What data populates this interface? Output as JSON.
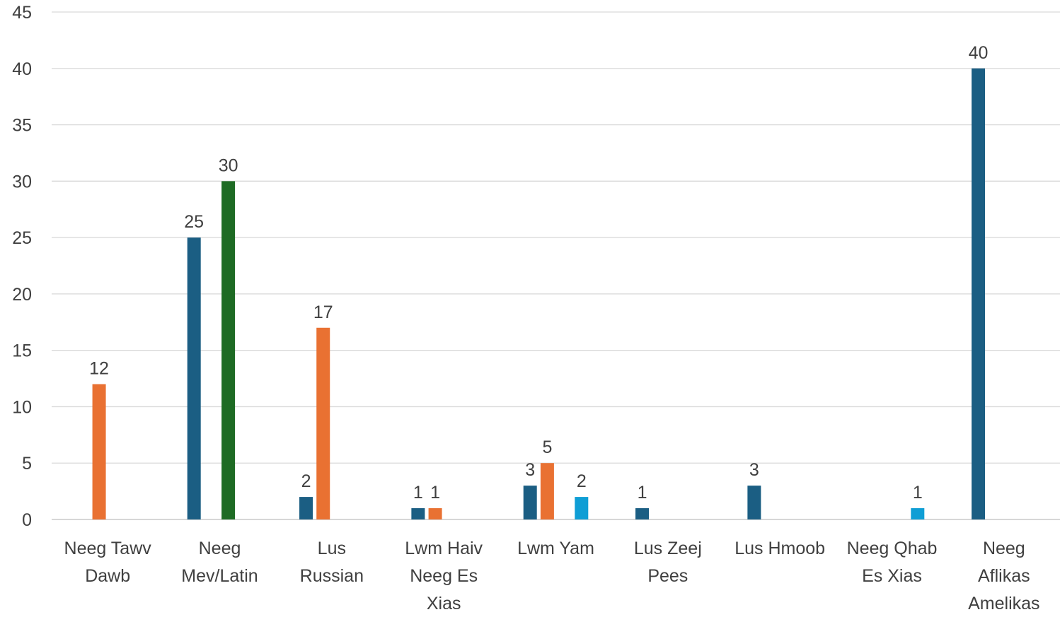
{
  "chart_data": {
    "type": "bar",
    "title": "",
    "xlabel": "",
    "ylabel": "",
    "ylim": [
      0,
      45
    ],
    "yticks": [
      "0",
      "5",
      "10",
      "15",
      "20",
      "25",
      "30",
      "35",
      "40",
      "45"
    ],
    "grid": true,
    "categories": [
      [
        "Neeg Tawv",
        "Dawb"
      ],
      [
        "Neeg",
        "Mev/Latin"
      ],
      [
        "Lus",
        "Russian"
      ],
      [
        "Lwm Haiv",
        "Neeg Es",
        "Xias"
      ],
      [
        "Lwm Yam"
      ],
      [
        "Lus Zeej",
        "Pees"
      ],
      [
        "Lus Hmoob"
      ],
      [
        "Neeg Qhab",
        "Es Xias"
      ],
      [
        "Neeg",
        "Aflikas",
        "Amelikas"
      ]
    ],
    "series": [
      {
        "color": "#1b5e83",
        "values": [
          null,
          25,
          2,
          1,
          3,
          1,
          3,
          null,
          40
        ]
      },
      {
        "color": "#e97132",
        "values": [
          12,
          null,
          17,
          1,
          5,
          null,
          null,
          null,
          null
        ]
      },
      {
        "color": "#1e6b24",
        "values": [
          null,
          30,
          null,
          null,
          null,
          null,
          null,
          null,
          null
        ]
      },
      {
        "color": "#0f9ed5",
        "values": [
          null,
          null,
          null,
          null,
          2,
          null,
          null,
          1,
          null
        ]
      }
    ]
  }
}
